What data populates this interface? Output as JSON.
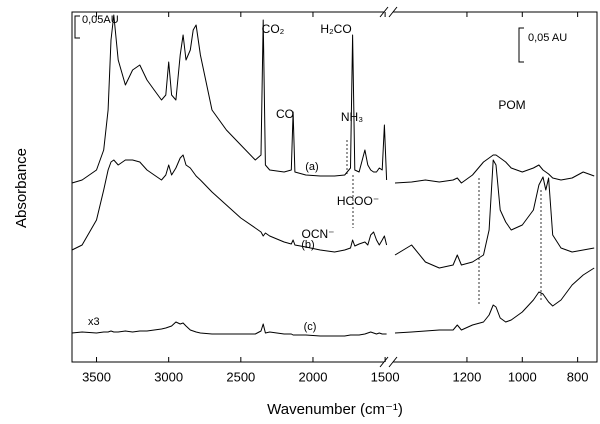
{
  "chart_data": [
    {
      "type": "line",
      "y_label": "Absorbance",
      "x_label": "Wavenumber (cm⁻¹)",
      "annotations": [
        "CO₂",
        "CO",
        "H₂CO",
        "NH₃",
        "HCOO⁻",
        "OCN⁻",
        "x3",
        "0,05AU",
        "POM",
        "0,05 AU"
      ],
      "xlim": [
        3670,
        1480
      ],
      "xticks": [
        3500,
        3000,
        2500,
        2000,
        1500
      ],
      "ylim": [
        0,
        350
      ],
      "x": [
        3670,
        3600,
        3500,
        3450,
        3420,
        3400,
        3380,
        3350,
        3300,
        3250,
        3200,
        3150,
        3100,
        3050,
        3020,
        3000,
        2980,
        2950,
        2920,
        2900,
        2880,
        2850,
        2830,
        2810,
        2780,
        2700,
        2600,
        2500,
        2400,
        2360,
        2345,
        2330,
        2300,
        2200,
        2150,
        2138,
        2125,
        2050,
        1950,
        1850,
        1780,
        1740,
        1725,
        1710,
        1680,
        1640,
        1620,
        1600,
        1580,
        1560,
        1540,
        1520,
        1505,
        1490
      ],
      "series": [
        {
          "name": "(a)",
          "color": "#000000",
          "values": [
            179,
            182,
            192,
            212,
            252,
            322,
            347,
            302,
            277,
            292,
            297,
            282,
            272,
            262,
            267,
            300,
            267,
            262,
            307,
            327,
            302,
            312,
            332,
            337,
            307,
            252,
            232,
            217,
            202,
            207,
            342,
            197,
            192,
            190,
            192,
            250,
            190,
            187,
            186,
            186,
            187,
            194,
            327,
            192,
            190,
            212,
            197,
            192,
            190,
            190,
            194,
            192,
            237,
            182
          ]
        },
        {
          "name": "(b)",
          "color": "#000000",
          "values": [
            112,
            117,
            142,
            172,
            192,
            200,
            202,
            197,
            202,
            202,
            200,
            192,
            187,
            182,
            187,
            197,
            187,
            194,
            204,
            207,
            197,
            194,
            190,
            186,
            182,
            170,
            157,
            144,
            134,
            130,
            126,
            129,
            126,
            120,
            118,
            122,
            117,
            115,
            112,
            110,
            112,
            114,
            122,
            116,
            118,
            120,
            117,
            127,
            130,
            122,
            117,
            122,
            126,
            117
          ]
        },
        {
          "name": "(c)",
          "color": "#000000",
          "values": [
            29,
            30,
            29,
            30,
            30,
            31,
            30,
            30,
            31,
            30,
            31,
            31,
            32,
            33,
            34,
            35,
            36,
            40,
            38,
            39,
            36,
            32,
            31,
            30,
            29,
            28,
            28,
            28,
            28,
            31,
            38,
            29,
            30,
            28,
            28,
            27,
            27,
            27,
            26,
            26,
            26,
            27,
            27,
            27,
            27,
            28,
            29,
            30,
            29,
            28,
            29,
            28,
            28,
            28
          ]
        }
      ]
    },
    {
      "type": "line",
      "xlim": [
        1460,
        730
      ],
      "xticks": [
        1200,
        1000,
        800
      ],
      "ylim": [
        0,
        350
      ],
      "x": [
        1460,
        1400,
        1350,
        1300,
        1250,
        1235,
        1220,
        1180,
        1140,
        1120,
        1105,
        1095,
        1080,
        1060,
        1040,
        1000,
        960,
        940,
        925,
        915,
        905,
        890,
        860,
        820,
        780,
        740
      ],
      "series": [
        {
          "color": "#000000",
          "values": [
            179,
            180,
            182,
            180,
            182,
            184,
            179,
            187,
            200,
            204,
            207,
            207,
            204,
            200,
            194,
            190,
            194,
            197,
            192,
            190,
            188,
            184,
            182,
            184,
            190,
            186
          ]
        },
        {
          "color": "#000000",
          "values": [
            107,
            117,
            100,
            94,
            97,
            107,
            97,
            100,
            107,
            132,
            202,
            197,
            152,
            140,
            132,
            137,
            152,
            177,
            185,
            172,
            184,
            127,
            114,
            110,
            112,
            114
          ]
        },
        {
          "color": "#000000",
          "values": [
            29,
            30,
            31,
            32,
            32,
            37,
            32,
            37,
            40,
            47,
            57,
            55,
            44,
            40,
            42,
            50,
            62,
            70,
            68,
            64,
            60,
            56,
            62,
            77,
            87,
            94
          ]
        }
      ]
    }
  ]
}
